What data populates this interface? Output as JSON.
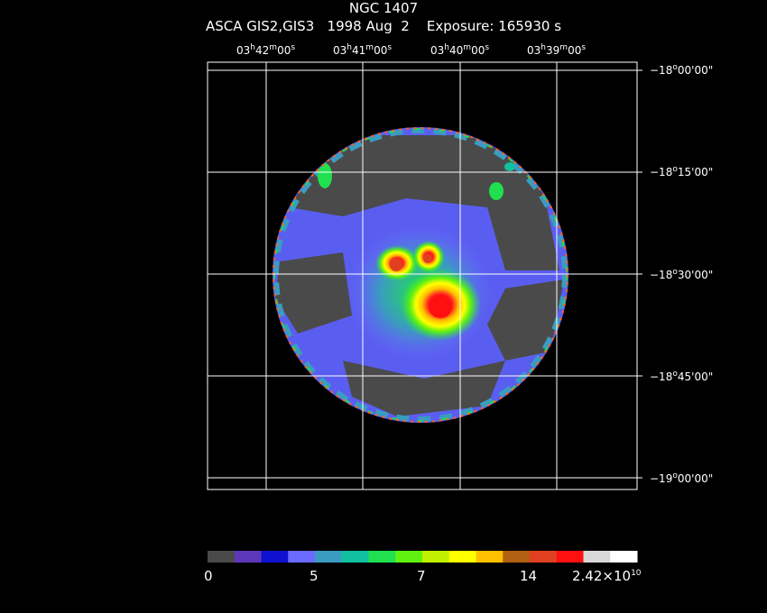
{
  "header": {
    "object": "NGC 1407",
    "subtitle": "ASCA GIS2,GIS3   1998 Aug  2    Exposure: 165930 s"
  },
  "ra_ticks": [
    {
      "h": "03",
      "m": "42",
      "s": "00"
    },
    {
      "h": "03",
      "m": "41",
      "s": "00"
    },
    {
      "h": "03",
      "m": "40",
      "s": "00"
    },
    {
      "h": "03",
      "m": "39",
      "s": "00"
    }
  ],
  "dec_ticks": [
    {
      "d": "−18",
      "m": "00",
      "s": "00"
    },
    {
      "d": "−18",
      "m": "15",
      "s": "00"
    },
    {
      "d": "−18",
      "m": "30",
      "s": "00"
    },
    {
      "d": "−18",
      "m": "45",
      "s": "00"
    },
    {
      "d": "−19",
      "m": "00",
      "s": "00"
    }
  ],
  "colorbar": {
    "colors": [
      "#4a4a4a",
      "#5b38b8",
      "#1010d0",
      "#6a6aff",
      "#3a9cc0",
      "#10c0a0",
      "#20e050",
      "#60f010",
      "#c0f000",
      "#ffff00",
      "#ffc000",
      "#b06010",
      "#e04020",
      "#ff1010",
      "#d8d8d8",
      "#ffffff"
    ],
    "labels": [
      "0",
      "5",
      "7",
      "14"
    ],
    "max_label": "2.42×10",
    "max_exp": "10"
  }
}
